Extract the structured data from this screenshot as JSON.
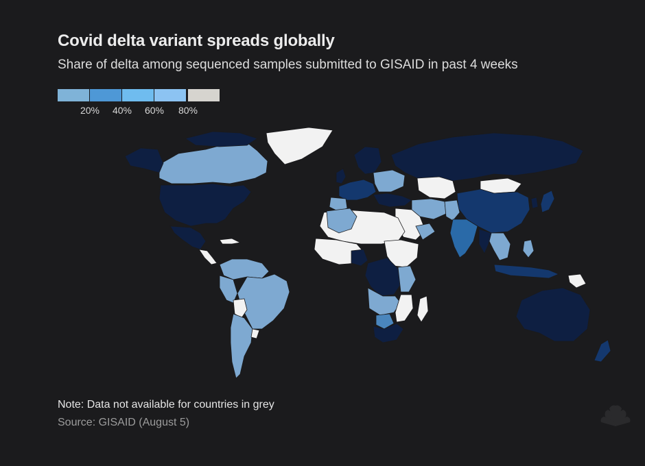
{
  "header": {
    "title": "Covid delta variant spreads globally",
    "subtitle": "Share of delta among sequenced samples submitted to GISAID in past 4 weeks"
  },
  "legend": {
    "ticks": [
      "20%",
      "40%",
      "60%",
      "80%"
    ],
    "colors": [
      "#7fb3d8",
      "#4e98d6",
      "#6fbcef",
      "#8cc3f2",
      "#d6d4cf"
    ]
  },
  "map_colors": {
    "background": "#1b1b1d",
    "no_data": "#f2f2f2",
    "very_high": "#0e1f42",
    "high": "#14386e",
    "mid_high": "#2a6aa8",
    "mid": "#4a86bd",
    "low": "#7ea9d1"
  },
  "footer": {
    "note": "Note: Data not available for countries in grey",
    "source": "Source: GISAID (August 5)"
  }
}
